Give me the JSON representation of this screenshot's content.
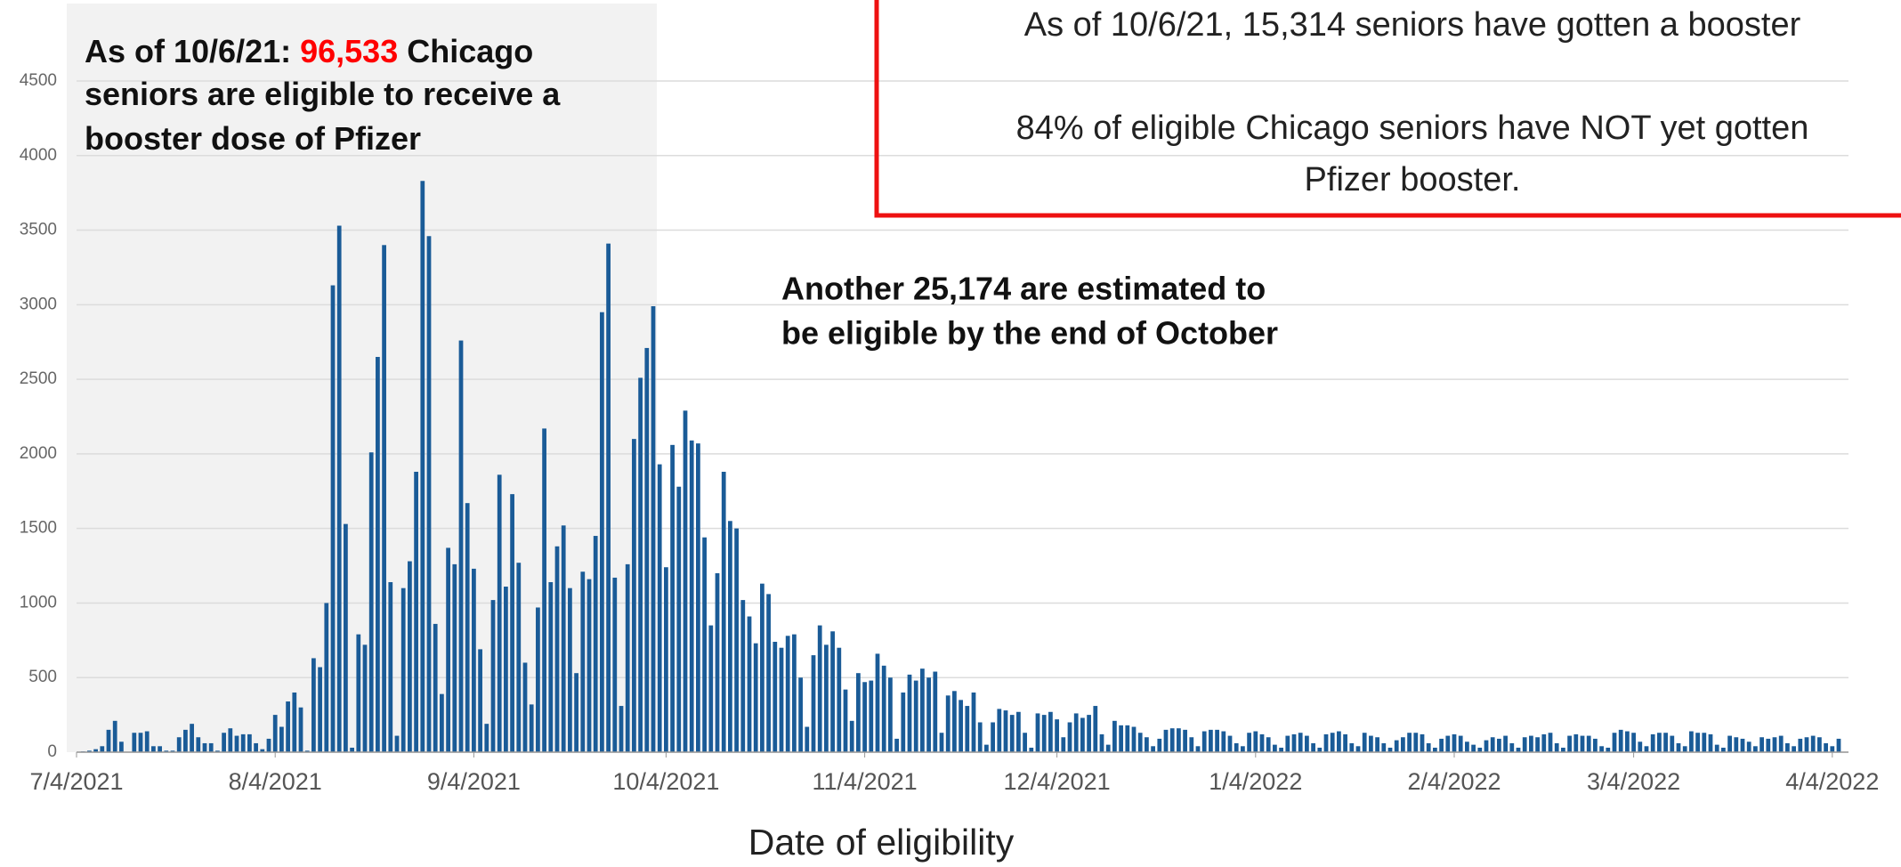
{
  "chart_data": {
    "type": "bar",
    "x_label": "Date of eligibility",
    "color": "#1a5b97",
    "highlight_color": "#ff0000",
    "grid": true,
    "ylim": [
      0,
      4500
    ],
    "yticks": [
      0,
      500,
      1000,
      1500,
      2000,
      2500,
      3000,
      3500,
      4000,
      4500
    ],
    "xlim": [
      "7/4/2021",
      "4/5/2022"
    ],
    "xticks": [
      "7/4/2021",
      "8/4/2021",
      "9/4/2021",
      "10/4/2021",
      "11/4/2021",
      "12/4/2021",
      "1/4/2022",
      "2/4/2022",
      "3/4/2022",
      "4/4/2022"
    ],
    "annotations": {
      "eligible": [
        [
          "As of 10/6/21: ",
          "96,533",
          " Chicago"
        ],
        [
          "seniors are eligible to receive a"
        ],
        [
          "booster dose of Pfizer"
        ]
      ],
      "upcoming": [
        "Another 25,174 are estimated to",
        "be eligible by the end of October"
      ],
      "boosted": "As of 10/6/21, 15,314 seniors have gotten a booster",
      "not_boosted": [
        "84% of eligible Chicago seniors have NOT yet gotten",
        "Pfizer booster."
      ]
    },
    "x": [
      "7/5/2021",
      "7/6/2021",
      "7/7/2021",
      "7/8/2021",
      "7/9/2021",
      "7/10/2021",
      "7/11/2021",
      "7/12/2021",
      "7/13/2021",
      "7/14/2021",
      "7/15/2021",
      "7/16/2021",
      "7/17/2021",
      "7/18/2021",
      "7/19/2021",
      "7/20/2021",
      "7/21/2021",
      "7/22/2021",
      "7/23/2021",
      "7/24/2021",
      "7/25/2021",
      "7/26/2021",
      "7/27/2021",
      "7/28/2021",
      "7/29/2021",
      "7/30/2021",
      "7/31/2021",
      "8/1/2021",
      "8/2/2021",
      "8/3/2021",
      "8/4/2021",
      "8/5/2021",
      "8/6/2021",
      "8/7/2021",
      "8/8/2021",
      "8/9/2021",
      "8/10/2021",
      "8/11/2021",
      "8/12/2021",
      "8/13/2021",
      "8/14/2021",
      "8/15/2021",
      "8/16/2021",
      "8/17/2021",
      "8/18/2021",
      "8/19/2021",
      "8/20/2021",
      "8/21/2021",
      "8/22/2021",
      "8/23/2021",
      "8/24/2021",
      "8/25/2021",
      "8/26/2021",
      "8/27/2021",
      "8/28/2021",
      "8/29/2021",
      "8/30/2021",
      "8/31/2021",
      "9/1/2021",
      "9/2/2021",
      "9/3/2021",
      "9/4/2021",
      "9/5/2021",
      "9/6/2021",
      "9/7/2021",
      "9/8/2021",
      "9/9/2021",
      "9/10/2021",
      "9/11/2021",
      "9/12/2021",
      "9/13/2021",
      "9/14/2021",
      "9/15/2021",
      "9/16/2021",
      "9/17/2021",
      "9/18/2021",
      "9/19/2021",
      "9/20/2021",
      "9/21/2021",
      "9/22/2021",
      "9/23/2021",
      "9/24/2021",
      "9/25/2021",
      "9/26/2021",
      "9/27/2021",
      "9/28/2021",
      "9/29/2021",
      "9/30/2021",
      "10/1/2021",
      "10/2/2021",
      "10/3/2021",
      "10/4/2021",
      "10/5/2021",
      "10/6/2021",
      "10/7/2021",
      "10/8/2021",
      "10/9/2021",
      "10/10/2021",
      "10/11/2021",
      "10/12/2021",
      "10/13/2021",
      "10/14/2021",
      "10/15/2021",
      "10/16/2021",
      "10/17/2021",
      "10/18/2021",
      "10/19/2021",
      "10/20/2021",
      "10/21/2021",
      "10/22/2021",
      "10/23/2021",
      "10/24/2021",
      "10/25/2021",
      "10/26/2021",
      "10/27/2021",
      "10/28/2021",
      "10/29/2021",
      "10/30/2021",
      "10/31/2021",
      "11/1/2021",
      "11/2/2021",
      "11/3/2021",
      "11/4/2021",
      "11/5/2021",
      "11/6/2021",
      "11/7/2021",
      "11/8/2021",
      "11/9/2021",
      "11/10/2021",
      "11/11/2021",
      "11/12/2021",
      "11/13/2021",
      "11/14/2021",
      "11/15/2021",
      "11/16/2021",
      "11/17/2021",
      "11/18/2021",
      "11/19/2021",
      "11/20/2021",
      "11/21/2021",
      "11/22/2021",
      "11/23/2021",
      "11/24/2021",
      "11/25/2021",
      "11/26/2021",
      "11/27/2021",
      "11/28/2021",
      "11/29/2021",
      "11/30/2021",
      "12/1/2021",
      "12/2/2021",
      "12/3/2021",
      "12/4/2021",
      "12/5/2021",
      "12/6/2021",
      "12/7/2021",
      "12/8/2021",
      "12/9/2021",
      "12/10/2021",
      "12/11/2021",
      "12/12/2021",
      "12/13/2021",
      "12/14/2021",
      "12/15/2021",
      "12/16/2021",
      "12/17/2021",
      "12/18/2021",
      "12/19/2021",
      "12/20/2021",
      "12/21/2021",
      "12/22/2021",
      "12/23/2021",
      "12/24/2021",
      "12/25/2021",
      "12/26/2021",
      "12/27/2021",
      "12/28/2021",
      "12/29/2021",
      "12/30/2021",
      "12/31/2021",
      "1/1/2022",
      "1/2/2022",
      "1/3/2022",
      "1/4/2022",
      "1/5/2022",
      "1/6/2022",
      "1/7/2022",
      "1/8/2022",
      "1/9/2022",
      "1/10/2022",
      "1/11/2022",
      "1/12/2022",
      "1/13/2022",
      "1/14/2022",
      "1/15/2022",
      "1/16/2022",
      "1/17/2022",
      "1/18/2022",
      "1/19/2022",
      "1/20/2022",
      "1/21/2022",
      "1/22/2022",
      "1/23/2022",
      "1/24/2022",
      "1/25/2022",
      "1/26/2022",
      "1/27/2022",
      "1/28/2022",
      "1/29/2022",
      "1/30/2022",
      "1/31/2022",
      "2/1/2022",
      "2/2/2022",
      "2/3/2022",
      "2/4/2022",
      "2/5/2022",
      "2/6/2022",
      "2/7/2022",
      "2/8/2022",
      "2/9/2022",
      "2/10/2022",
      "2/11/2022",
      "2/12/2022",
      "2/13/2022",
      "2/14/2022",
      "2/15/2022",
      "2/16/2022",
      "2/17/2022",
      "2/18/2022",
      "2/19/2022",
      "2/20/2022",
      "2/21/2022",
      "2/22/2022",
      "2/23/2022",
      "2/24/2022",
      "2/25/2022",
      "2/26/2022",
      "2/27/2022",
      "2/28/2022",
      "3/1/2022",
      "3/2/2022",
      "3/3/2022",
      "3/4/2022",
      "3/5/2022",
      "3/6/2022",
      "3/7/2022",
      "3/8/2022",
      "3/9/2022",
      "3/10/2022",
      "3/11/2022",
      "3/12/2022",
      "3/13/2022",
      "3/14/2022",
      "3/15/2022",
      "3/16/2022",
      "3/17/2022",
      "3/18/2022",
      "3/19/2022",
      "3/20/2022",
      "3/21/2022",
      "3/22/2022",
      "3/23/2022",
      "3/24/2022",
      "3/25/2022",
      "3/26/2022",
      "3/27/2022",
      "3/28/2022",
      "3/29/2022",
      "3/30/2022",
      "3/31/2022",
      "4/1/2022",
      "4/2/2022",
      "4/3/2022",
      "4/4/2022",
      "4/5/2022"
    ],
    "values": [
      5,
      10,
      20,
      40,
      150,
      210,
      70,
      0,
      130,
      130,
      140,
      40,
      40,
      10,
      10,
      100,
      150,
      190,
      100,
      60,
      60,
      10,
      130,
      160,
      110,
      120,
      120,
      60,
      20,
      90,
      250,
      170,
      340,
      400,
      300,
      10,
      630,
      570,
      1000,
      3130,
      3530,
      1530,
      30,
      790,
      720,
      2010,
      2650,
      3400,
      1140,
      110,
      1100,
      1280,
      1880,
      3830,
      3460,
      860,
      390,
      1370,
      1260,
      2760,
      1670,
      1230,
      690,
      190,
      1020,
      1860,
      1110,
      1730,
      1270,
      600,
      320,
      970,
      2170,
      1140,
      1380,
      1520,
      1100,
      530,
      1210,
      1160,
      1450,
      2950,
      3410,
      1170,
      310,
      1260,
      2100,
      2510,
      2710,
      2990,
      1930,
      1240,
      2060,
      1780,
      2290,
      2090,
      2070,
      1440,
      850,
      1200,
      1880,
      1550,
      1500,
      1020,
      910,
      730,
      1130,
      1060,
      740,
      700,
      780,
      790,
      500,
      170,
      650,
      850,
      720,
      810,
      700,
      420,
      210,
      530,
      470,
      480,
      660,
      580,
      500,
      90,
      400,
      520,
      480,
      560,
      500,
      540,
      130,
      380,
      410,
      350,
      310,
      400,
      200,
      50,
      200,
      290,
      280,
      250,
      270,
      130,
      30,
      260,
      250,
      270,
      220,
      100,
      200,
      260,
      230,
      250,
      310,
      120,
      50,
      210,
      180,
      180,
      170,
      130,
      100,
      40,
      90,
      150,
      160,
      160,
      150,
      100,
      40,
      140,
      150,
      150,
      140,
      110,
      60,
      40,
      130,
      140,
      120,
      100,
      50,
      30,
      110,
      120,
      130,
      110,
      60,
      30,
      120,
      130,
      140,
      120,
      60,
      40,
      130,
      110,
      100,
      60,
      30,
      80,
      100,
      130,
      130,
      120,
      60,
      30,
      90,
      110,
      120,
      110,
      70,
      50,
      30,
      80,
      100,
      90,
      110,
      60,
      30,
      100,
      110,
      100,
      120,
      130,
      60,
      30,
      110,
      120,
      110,
      110,
      90,
      40,
      30,
      130,
      150,
      140,
      130,
      70,
      40,
      120,
      130,
      130,
      110,
      60,
      40,
      140,
      130,
      130,
      120,
      50,
      30,
      110,
      100,
      90,
      70,
      40,
      100,
      90,
      100,
      110,
      60,
      40,
      90,
      100,
      110,
      100,
      60,
      40,
      90
    ]
  }
}
